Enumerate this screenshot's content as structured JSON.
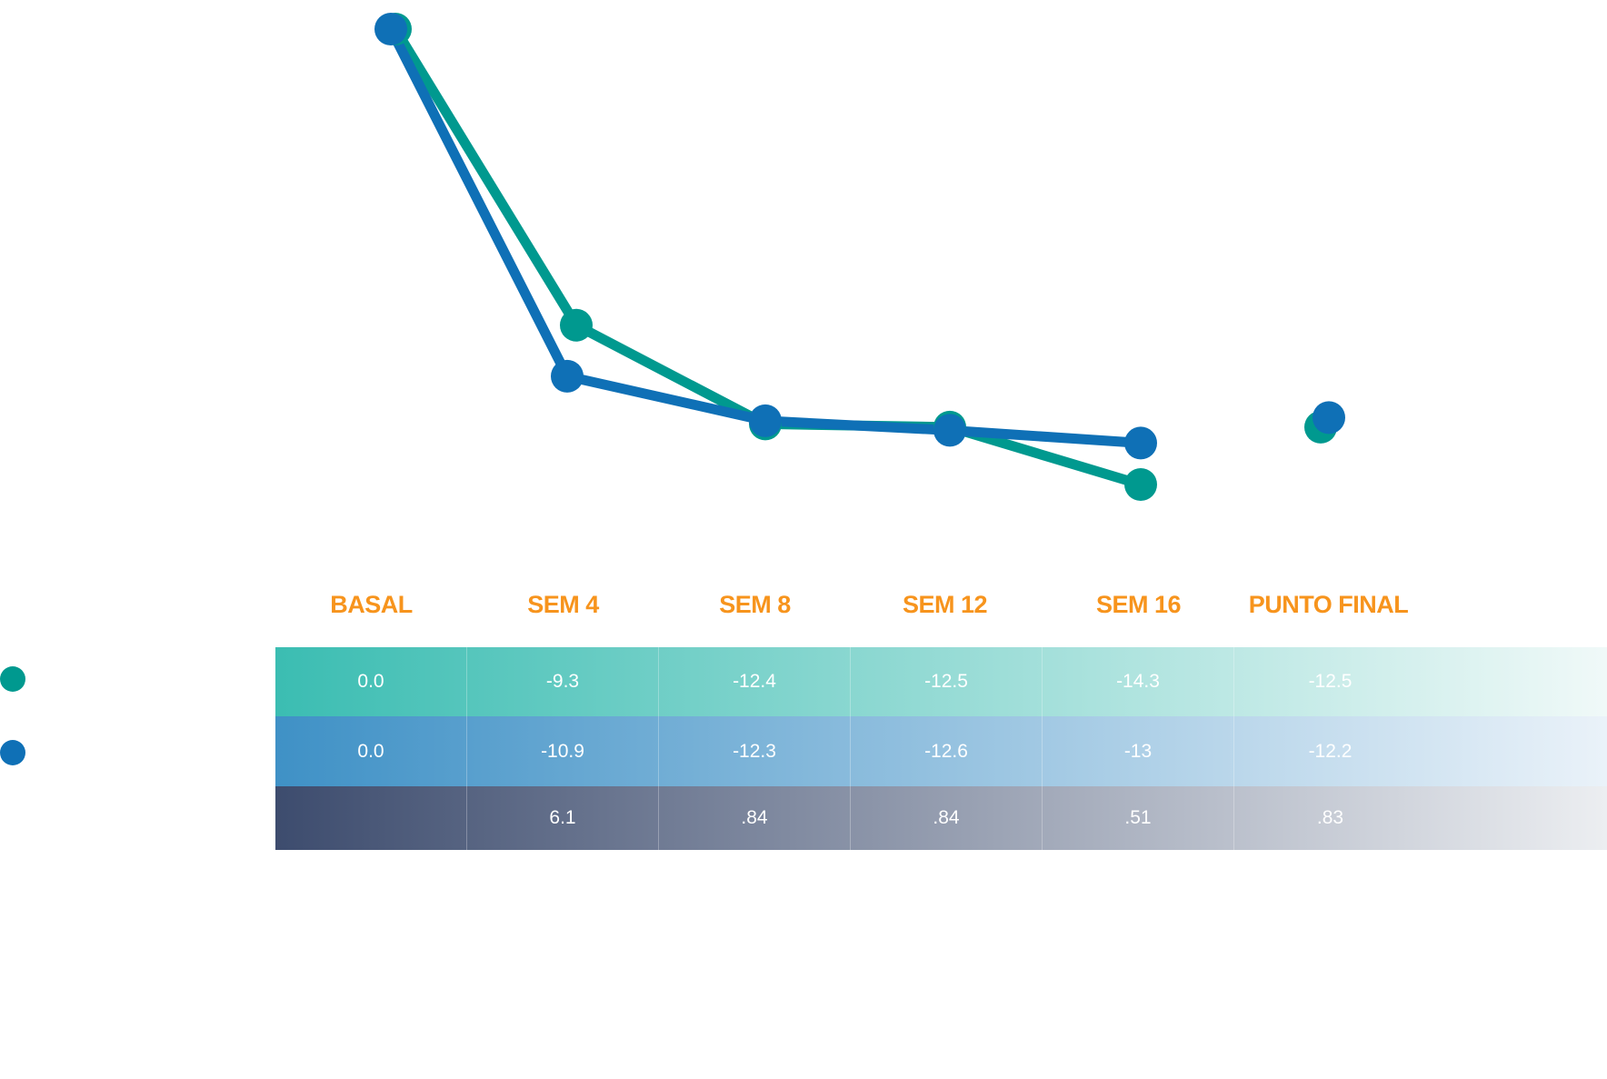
{
  "colors": {
    "teal": "#00998f",
    "blue": "#0f70b6",
    "orange": "#f7941d",
    "teal_row_gradient": [
      "#3bbdb2",
      "#f0f9f8"
    ],
    "blue_row_gradient": [
      "#3f91c6",
      "#eaf2f9"
    ],
    "dark_row_gradient": [
      "#3d4c6e",
      "#eceef1"
    ]
  },
  "chart_data": {
    "type": "line",
    "categories": [
      "BASAL",
      "SEM 4",
      "SEM 8",
      "SEM 12",
      "SEM 16",
      "PUNTO FINAL"
    ],
    "series": [
      {
        "color": "#00998f",
        "values": [
          0.0,
          -9.3,
          -12.4,
          -12.5,
          -14.3,
          -12.5
        ],
        "connected_points": 5
      },
      {
        "color": "#0f70b6",
        "values": [
          0.0,
          -10.9,
          -12.3,
          -12.6,
          -13,
          -12.2
        ],
        "connected_points": 5
      }
    ],
    "ylim": [
      -15.5,
      0.4
    ],
    "grid": false
  },
  "table": {
    "rows": [
      {
        "cells": [
          "0.0",
          "-9.3",
          "-12.4",
          "-12.5",
          "-14.3",
          "-12.5"
        ]
      },
      {
        "cells": [
          "0.0",
          "-10.9",
          "-12.3",
          "-12.6",
          "-13",
          "-12.2"
        ]
      },
      {
        "cells": [
          "",
          "6.1",
          ".84",
          ".84",
          ".51",
          ".83"
        ]
      }
    ]
  }
}
